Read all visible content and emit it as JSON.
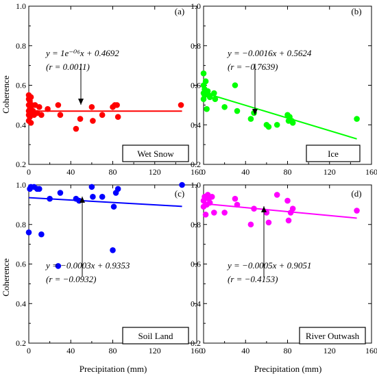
{
  "figure": {
    "ylabel": "Coherence",
    "xlabel": "Precipitation (mm)"
  },
  "chart_data": [
    {
      "type": "scatter",
      "panel_label": "(a)",
      "legend_box": "Wet Snow",
      "color": "#ff0000",
      "fit_color": "#ff0000",
      "equation": "y = 1e⁻⁰⁶x + 0.4692",
      "correlation": "(r = 0.0011)",
      "fit": {
        "slope": 1e-06,
        "intercept": 0.4692,
        "x_range": [
          0,
          146
        ]
      },
      "xlim": [
        0,
        160
      ],
      "ylim": [
        0.2,
        1.0
      ],
      "xticks": [
        "0",
        "40",
        "80",
        "120",
        "160"
      ],
      "yticks": [
        "0.2",
        "0.4",
        "0.6",
        "0.8",
        "1.0"
      ],
      "x": [
        0,
        0,
        0,
        0,
        0,
        0,
        1,
        1,
        1,
        2,
        2,
        2,
        3,
        3,
        4,
        5,
        6,
        8,
        10,
        12,
        18,
        28,
        30,
        45,
        49,
        60,
        61,
        70,
        80,
        82,
        84,
        85,
        145
      ],
      "y": [
        0.55,
        0.53,
        0.5,
        0.47,
        0.45,
        0.42,
        0.52,
        0.48,
        0.44,
        0.54,
        0.49,
        0.41,
        0.5,
        0.46,
        0.47,
        0.45,
        0.5,
        0.46,
        0.49,
        0.45,
        0.48,
        0.5,
        0.45,
        0.38,
        0.43,
        0.49,
        0.42,
        0.45,
        0.49,
        0.5,
        0.5,
        0.44,
        0.5
      ]
    },
    {
      "type": "scatter",
      "panel_label": "(b)",
      "legend_box": "Ice",
      "color": "#00ff00",
      "fit_color": "#00ff00",
      "equation": "y = −0.0016x + 0.5624",
      "correlation": "(r = −0.7639)",
      "fit": {
        "slope": -0.0016,
        "intercept": 0.5624,
        "x_range": [
          0,
          146
        ]
      },
      "xlim": [
        0,
        160
      ],
      "ylim": [
        0.2,
        1.0
      ],
      "xticks": [
        "0",
        "40",
        "80",
        "120",
        "160"
      ],
      "yticks": [
        "0.2",
        "0.4",
        "0.6",
        "0.8",
        "1.0"
      ],
      "x": [
        0,
        0,
        0,
        0,
        1,
        1,
        2,
        3,
        4,
        5,
        6,
        10,
        11,
        20,
        30,
        32,
        45,
        48,
        60,
        62,
        70,
        80,
        81,
        82,
        84,
        85,
        146
      ],
      "y": [
        0.66,
        0.6,
        0.56,
        0.53,
        0.58,
        0.55,
        0.62,
        0.48,
        0.57,
        0.55,
        0.54,
        0.56,
        0.53,
        0.49,
        0.6,
        0.47,
        0.43,
        0.46,
        0.4,
        0.39,
        0.4,
        0.45,
        0.42,
        0.44,
        0.42,
        0.41,
        0.43
      ]
    },
    {
      "type": "scatter",
      "panel_label": "(c)",
      "legend_box": "Soil Land",
      "color": "#0000ff",
      "fit_color": "#0000ff",
      "equation": "y = −0.0003x + 0.9353",
      "correlation": "(r = −0.0932)",
      "fit": {
        "slope": -0.0003,
        "intercept": 0.9353,
        "x_range": [
          0,
          146
        ]
      },
      "xlim": [
        0,
        160
      ],
      "ylim": [
        0.2,
        1.0
      ],
      "xticks": [
        "0",
        "40",
        "80",
        "120",
        "160"
      ],
      "yticks": [
        "0.2",
        "0.4",
        "0.6",
        "0.8",
        "1.0"
      ],
      "x": [
        0,
        1,
        2,
        5,
        8,
        10,
        12,
        20,
        28,
        30,
        45,
        48,
        60,
        61,
        70,
        80,
        81,
        83,
        85,
        146
      ],
      "y": [
        0.76,
        0.98,
        0.99,
        0.99,
        0.98,
        0.98,
        0.75,
        0.93,
        0.59,
        0.96,
        0.93,
        0.92,
        0.99,
        0.94,
        0.94,
        0.67,
        0.89,
        0.96,
        0.98,
        1.0
      ]
    },
    {
      "type": "scatter",
      "panel_label": "(d)",
      "legend_box": "River Outwash",
      "color": "#ff00ff",
      "fit_color": "#ff00ff",
      "equation": "y = −0.0005x + 0.9051",
      "correlation": "(r = −0.4153)",
      "fit": {
        "slope": -0.0005,
        "intercept": 0.9051,
        "x_range": [
          0,
          146
        ]
      },
      "xlim": [
        0,
        160
      ],
      "ylim": [
        0.2,
        1.0
      ],
      "xticks": [
        "0",
        "40",
        "80",
        "120",
        "160"
      ],
      "yticks": [
        "0.2",
        "0.4",
        "0.6",
        "0.8",
        "1.0"
      ],
      "x": [
        0,
        0,
        1,
        2,
        3,
        4,
        5,
        6,
        8,
        10,
        20,
        30,
        32,
        45,
        48,
        60,
        62,
        70,
        80,
        81,
        83,
        85,
        146
      ],
      "y": [
        0.92,
        0.89,
        0.94,
        0.85,
        0.9,
        0.95,
        0.93,
        0.91,
        0.94,
        0.86,
        0.86,
        0.93,
        0.9,
        0.8,
        0.88,
        0.86,
        0.81,
        0.95,
        0.92,
        0.82,
        0.86,
        0.88,
        0.87
      ]
    }
  ]
}
